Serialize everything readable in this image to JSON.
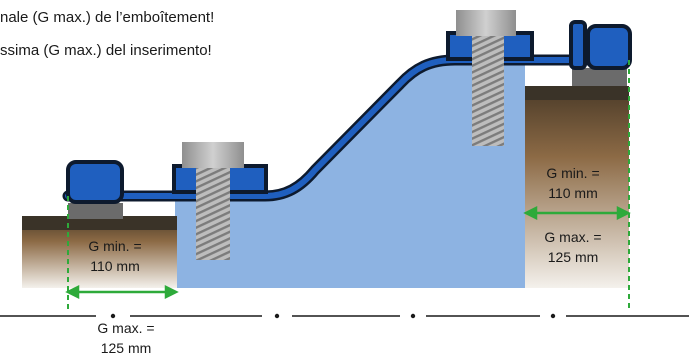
{
  "notes": {
    "french": "nale (G max.) de l’emboîtement!",
    "italian": "ssima (G max.) del inserimento!"
  },
  "dimensions": {
    "left_min": [
      "G min. =",
      "110 mm"
    ],
    "left_max": [
      "G max. =",
      "125 mm"
    ],
    "right_min": [
      "G min. =",
      "110 mm"
    ],
    "right_max": [
      "G max. =",
      "125 mm"
    ]
  },
  "colors": {
    "fill_blue": "#8db3e2",
    "pipe_blue": "#1f5fbf",
    "outline": "#0d1a2e",
    "soil_top": "#3a2f22",
    "soil_mid": "#8c6a45",
    "dim_green": "#2eaa3a",
    "bolt_grey": "#a6a6a6"
  }
}
